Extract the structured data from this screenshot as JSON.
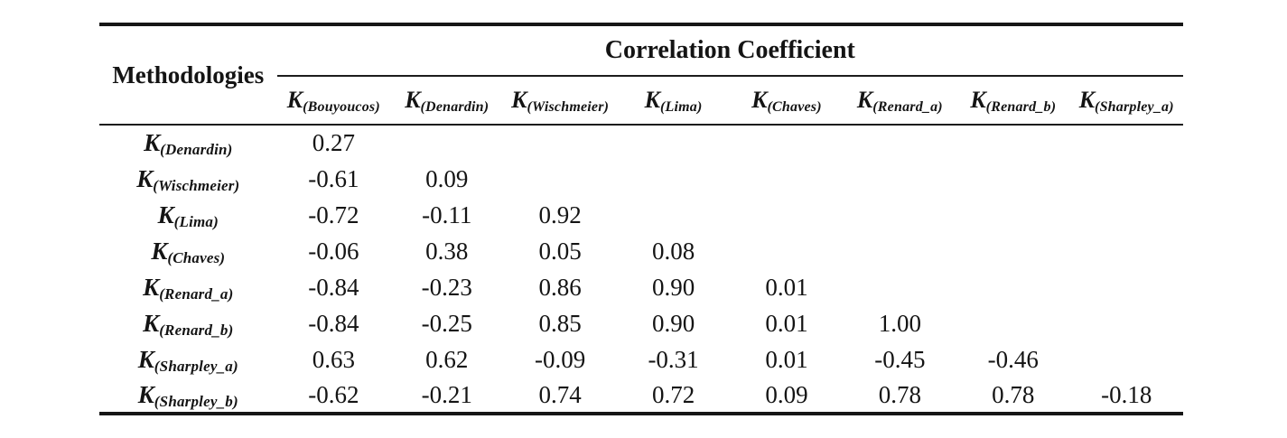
{
  "table": {
    "corner_label": "Methodologies",
    "group_header": "Correlation Coefficient",
    "columns": [
      {
        "base": "K",
        "sub": "(Bouyoucos)"
      },
      {
        "base": "K",
        "sub": "(Denardin)"
      },
      {
        "base": "K",
        "sub": "(Wischmeier)"
      },
      {
        "base": "K",
        "sub": "(Lima)"
      },
      {
        "base": "K",
        "sub": "(Chaves)"
      },
      {
        "base": "K",
        "sub": "(Renard_a)"
      },
      {
        "base": "K",
        "sub": "(Renard_b)"
      },
      {
        "base": "K",
        "sub": "(Sharpley_a)"
      }
    ],
    "rows": [
      {
        "base": "K",
        "sub": "(Denardin)",
        "values": [
          "0.27",
          "",
          "",
          "",
          "",
          "",
          "",
          ""
        ]
      },
      {
        "base": "K",
        "sub": "(Wischmeier)",
        "values": [
          "-0.61",
          "0.09",
          "",
          "",
          "",
          "",
          "",
          ""
        ]
      },
      {
        "base": "K",
        "sub": "(Lima)",
        "values": [
          "-0.72",
          "-0.11",
          "0.92",
          "",
          "",
          "",
          "",
          ""
        ]
      },
      {
        "base": "K",
        "sub": "(Chaves)",
        "values": [
          "-0.06",
          "0.38",
          "0.05",
          "0.08",
          "",
          "",
          "",
          ""
        ]
      },
      {
        "base": "K",
        "sub": "(Renard_a)",
        "values": [
          "-0.84",
          "-0.23",
          "0.86",
          "0.90",
          "0.01",
          "",
          "",
          ""
        ]
      },
      {
        "base": "K",
        "sub": "(Renard_b)",
        "values": [
          "-0.84",
          "-0.25",
          "0.85",
          "0.90",
          "0.01",
          "1.00",
          "",
          ""
        ]
      },
      {
        "base": "K",
        "sub": "(Sharpley_a)",
        "values": [
          "0.63",
          "0.62",
          "-0.09",
          "-0.31",
          "0.01",
          "-0.45",
          "-0.46",
          ""
        ]
      },
      {
        "base": "K",
        "sub": "(Sharpley_b)",
        "values": [
          "-0.62",
          "-0.21",
          "0.74",
          "0.72",
          "0.09",
          "0.78",
          "0.78",
          "-0.18"
        ]
      }
    ]
  }
}
